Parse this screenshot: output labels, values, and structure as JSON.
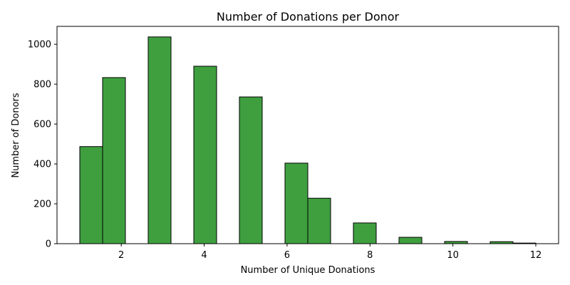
{
  "chart_data": {
    "type": "bar",
    "title": "Number of Donations per Donor",
    "xlabel": "Number of Unique Donations",
    "ylabel": "Number of Donors",
    "xlim": [
      0.45,
      12.55
    ],
    "ylim": [
      0,
      1090
    ],
    "xticks": [
      2,
      4,
      6,
      8,
      10,
      12
    ],
    "yticks": [
      0,
      200,
      400,
      600,
      800,
      1000
    ],
    "bar_color": "#3f9f3f",
    "edge_color": "#000000",
    "bins": [
      {
        "x0": 1.0,
        "x1": 1.55,
        "value": 487
      },
      {
        "x0": 1.55,
        "x1": 2.1,
        "value": 833
      },
      {
        "x0": 2.65,
        "x1": 3.2,
        "value": 1037
      },
      {
        "x0": 3.75,
        "x1": 4.3,
        "value": 890
      },
      {
        "x0": 4.85,
        "x1": 5.4,
        "value": 736
      },
      {
        "x0": 5.95,
        "x1": 6.5,
        "value": 404
      },
      {
        "x0": 6.5,
        "x1": 7.05,
        "value": 228
      },
      {
        "x0": 7.6,
        "x1": 8.15,
        "value": 104
      },
      {
        "x0": 8.7,
        "x1": 9.25,
        "value": 32
      },
      {
        "x0": 9.8,
        "x1": 10.35,
        "value": 11
      },
      {
        "x0": 10.9,
        "x1": 11.45,
        "value": 10
      },
      {
        "x0": 11.45,
        "x1": 12.0,
        "value": 3
      }
    ]
  }
}
